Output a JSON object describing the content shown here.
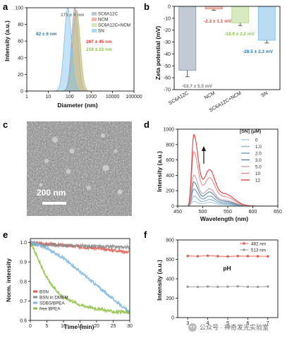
{
  "colors": {
    "SC6A12C": "#8f9fb3",
    "NCM": "#e88a7e",
    "SC6A12C+NCM": "#b8d98a",
    "SN": "#7fc0ea",
    "annotation_blue": "#2a7ab8",
    "annotation_gray": "#7a7a7a",
    "annotation_red": "#e0443a",
    "annotation_green": "#8cc043",
    "f_482": "#e05a4e",
    "f_513": "#9a9a9a"
  },
  "panels": {
    "a": {
      "label": "a",
      "xlabel": "Diameter (nm)",
      "ylabel": "Intensity (a.u.)",
      "annotations": [
        "175 ± 4 nm",
        "82 ± 6 nm",
        "207 ± 45 nm",
        "218 ± 22 nm"
      ]
    },
    "b": {
      "label": "b",
      "xlabel": "",
      "ylabel": "Zeta potential (mV)",
      "annotations": [
        "-53.7 ± 5.5 mV",
        "-2.2 ± 1.1 mV",
        "-13.9 ± 2.2 mV",
        "-28.5 ± 2.3 mV"
      ]
    },
    "c": {
      "label": "c",
      "scale_bar": "200 nm"
    },
    "d": {
      "label": "d",
      "xlabel": "Wavelength (nm)",
      "ylabel": "Intensity (a.u.)",
      "legend_title": "[SN] (μM)"
    },
    "e": {
      "label": "e",
      "xlabel": "Time (min)",
      "ylabel": "Norm. intensity"
    },
    "f": {
      "label": "f",
      "xlabel": "pH",
      "ylabel": "Intensity (a.u.)"
    }
  },
  "chart_data": [
    {
      "panel": "a",
      "type": "area",
      "xscale": "log",
      "xlim": [
        1,
        100000
      ],
      "ylim": [
        0,
        100
      ],
      "xticks": [
        1,
        10,
        100,
        1000,
        10000,
        100000
      ],
      "yticks": [
        0,
        20,
        40,
        60,
        80,
        100
      ],
      "xtick_labels": [
        "1",
        "10",
        "100",
        "1000",
        "10000",
        "100000"
      ],
      "legend_position": "top-right",
      "series": [
        {
          "name": "SC6A12C",
          "peak_x": 175,
          "peak_y": 100,
          "x_at_half": [
            115,
            265
          ]
        },
        {
          "name": "NCM",
          "peak_x": 207,
          "peak_y": 97,
          "x_at_half": [
            130,
            330
          ]
        },
        {
          "name": "SC6A12C+NCM",
          "peak_x": 218,
          "peak_y": 93,
          "x_at_half": [
            140,
            340
          ]
        },
        {
          "name": "SN",
          "peak_x": 82,
          "peak_y": 100,
          "x_at_half": [
            52,
            130
          ]
        }
      ]
    },
    {
      "panel": "b",
      "type": "bar",
      "categories": [
        "SC6A12C",
        "NCM",
        "SC6A12C+NCM",
        "SN"
      ],
      "values": [
        -53.7,
        -2.2,
        -13.9,
        -28.5
      ],
      "errors": [
        5.5,
        1.1,
        2.2,
        2.3
      ],
      "ylim": [
        -70,
        0
      ],
      "yticks": [
        0,
        -10,
        -20,
        -30,
        -40,
        -50,
        -60,
        -70
      ]
    },
    {
      "panel": "d",
      "type": "line",
      "xlim": [
        450,
        650
      ],
      "ylim": [
        0,
        1000
      ],
      "xticks": [
        450,
        500,
        550,
        600,
        650
      ],
      "yticks": [
        0,
        200,
        400,
        600,
        800,
        1000
      ],
      "legend_position": "right",
      "series": [
        {
          "name": "0",
          "color": "#a9cde3",
          "peak1": [
            482,
            60
          ],
          "peak2": [
            513,
            45
          ]
        },
        {
          "name": "1.0",
          "color": "#8cb4cf",
          "peak1": [
            482,
            130
          ],
          "peak2": [
            513,
            80
          ]
        },
        {
          "name": "2.0",
          "color": "#6f99b8",
          "peak1": [
            482,
            220
          ],
          "peak2": [
            513,
            120
          ]
        },
        {
          "name": "3.0",
          "color": "#5c86a8",
          "peak1": [
            482,
            310
          ],
          "peak2": [
            513,
            170
          ]
        },
        {
          "name": "5.0",
          "color": "#c9a2a6",
          "peak1": [
            482,
            400
          ],
          "peak2": [
            513,
            210
          ]
        },
        {
          "name": "10",
          "color": "#e08d8d",
          "peak1": [
            482,
            700
          ],
          "peak2": [
            513,
            340
          ]
        },
        {
          "name": "12",
          "color": "#e04040",
          "peak1": [
            482,
            920
          ],
          "peak2": [
            513,
            440
          ]
        }
      ]
    },
    {
      "panel": "e",
      "type": "line",
      "xlim": [
        0,
        30
      ],
      "ylim": [
        0.6,
        1.02
      ],
      "xticks": [
        0,
        5,
        10,
        15,
        20,
        25,
        30
      ],
      "yticks": [
        0.6,
        0.7,
        0.8,
        0.9,
        1.0
      ],
      "legend_position": "bottom-left",
      "series": [
        {
          "name": "BSN",
          "color": "#e05a4e",
          "x": [
            0,
            10,
            20,
            30
          ],
          "y": [
            1.0,
            0.985,
            0.97,
            0.95
          ]
        },
        {
          "name": "BSN in DMEM",
          "color": "#8a8a8a",
          "x": [
            0,
            10,
            20,
            30
          ],
          "y": [
            0.99,
            0.985,
            0.98,
            0.975
          ]
        },
        {
          "name": "SDBS/BPEA",
          "color": "#7ab4e0",
          "x": [
            0,
            2,
            5,
            10,
            15,
            20,
            25,
            30
          ],
          "y": [
            1.0,
            0.99,
            0.97,
            0.92,
            0.85,
            0.78,
            0.71,
            0.64
          ]
        },
        {
          "name": "free BPEA",
          "color": "#8cc043",
          "x": [
            0,
            2,
            4,
            6,
            8,
            10,
            15,
            20,
            25,
            30
          ],
          "y": [
            1.0,
            0.93,
            0.85,
            0.79,
            0.75,
            0.72,
            0.68,
            0.66,
            0.645,
            0.64
          ]
        }
      ]
    },
    {
      "panel": "f",
      "type": "line",
      "xlim": [
        2.5,
        7.5
      ],
      "ylim": [
        0,
        800
      ],
      "xticks": [
        3,
        4,
        5,
        6,
        7
      ],
      "yticks": [
        0,
        200,
        400,
        600,
        800
      ],
      "legend_position": "top-right",
      "series": [
        {
          "name": "482 nm",
          "color": "#e05a4e",
          "x": [
            3,
            3.5,
            4,
            4.5,
            5,
            5.5,
            6,
            6.5,
            7
          ],
          "y": [
            635,
            632,
            638,
            633,
            630,
            634,
            633,
            632,
            631
          ]
        },
        {
          "name": "513 nm",
          "color": "#9a9a9a",
          "x": [
            3,
            3.5,
            4,
            4.5,
            5,
            5.5,
            6,
            6.5,
            7
          ],
          "y": [
            318,
            316,
            320,
            317,
            319,
            322,
            318,
            317,
            320
          ]
        }
      ]
    }
  ],
  "watermark": "公众号 · 神奇发光实验室"
}
